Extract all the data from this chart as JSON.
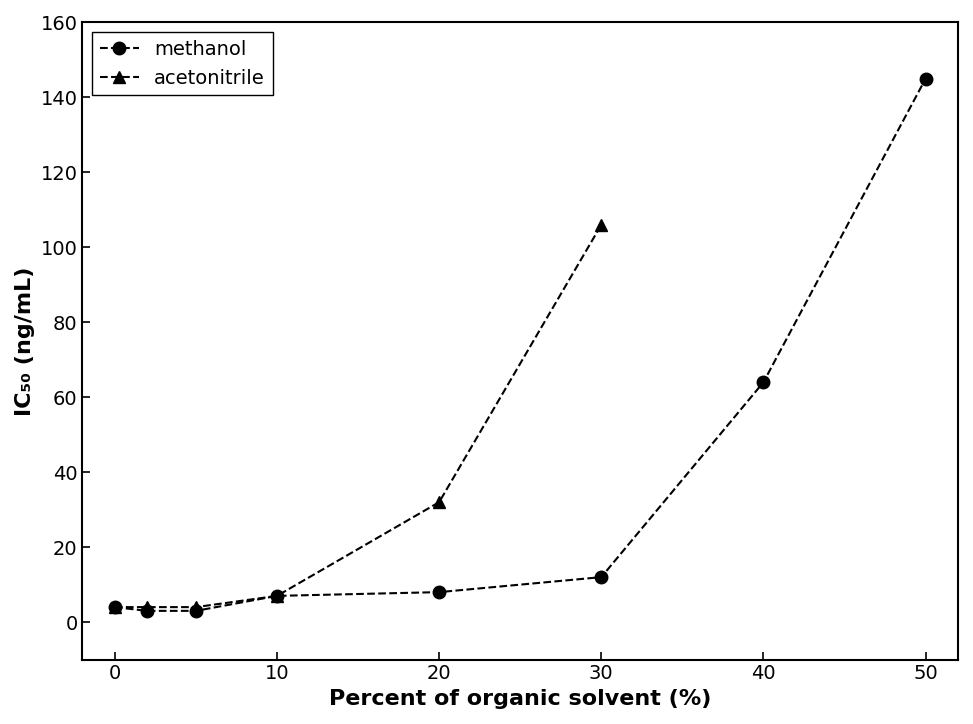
{
  "methanol_x": [
    0,
    2,
    5,
    10,
    20,
    30,
    40,
    50
  ],
  "methanol_y": [
    4,
    3,
    3,
    7,
    8,
    12,
    64,
    145
  ],
  "acetonitrile_x": [
    0,
    2,
    5,
    10,
    20,
    30
  ],
  "acetonitrile_y": [
    4,
    4,
    4,
    7,
    32,
    106
  ],
  "xlabel": "Percent of organic solvent (%)",
  "ylabel": "IC₅₀ (ng/mL)",
  "ylim": [
    -10,
    160
  ],
  "xlim": [
    -2,
    52
  ],
  "yticks": [
    0,
    20,
    40,
    60,
    80,
    100,
    120,
    140,
    160
  ],
  "xticks": [
    0,
    10,
    20,
    30,
    40,
    50
  ],
  "legend_methanol": "methanol",
  "legend_acetonitrile": "acetonitrile",
  "line_color": "#000000",
  "bg_color": "#ffffff",
  "marker_circle": "o",
  "marker_triangle": "^",
  "marker_size": 9,
  "linewidth": 1.5,
  "font_size_label": 16,
  "font_size_tick": 14,
  "font_size_legend": 14
}
